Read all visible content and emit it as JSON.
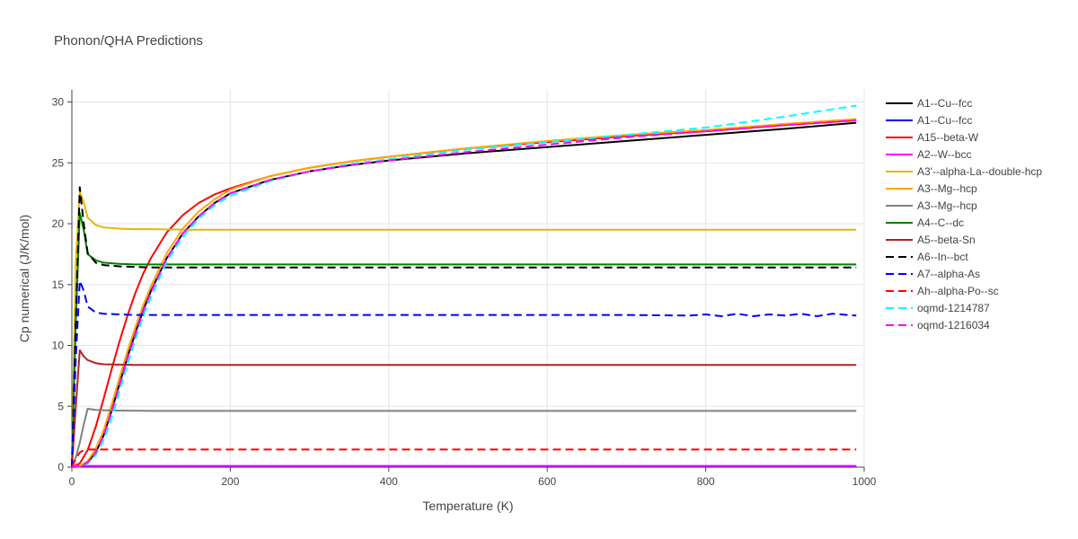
{
  "chart_data": {
    "type": "line",
    "title": "Phonon/QHA Predictions",
    "xlabel": "Temperature (K)",
    "ylabel": "Cp numerical (J/K/mol)",
    "xlim": [
      0,
      1000
    ],
    "ylim": [
      0,
      31
    ],
    "xticks": [
      0,
      200,
      400,
      600,
      800,
      1000
    ],
    "yticks": [
      0,
      5,
      10,
      15,
      20,
      25,
      30
    ],
    "grid": true,
    "legend_position": "right",
    "series": [
      {
        "name": "A1--Cu--fcc",
        "color": "#000000",
        "dash": "solid",
        "x": [
          0,
          10,
          20,
          30,
          40,
          50,
          60,
          70,
          80,
          90,
          100,
          120,
          140,
          160,
          180,
          200,
          250,
          300,
          350,
          400,
          500,
          600,
          700,
          800,
          900,
          990
        ],
        "y": [
          0,
          0.1,
          0.4,
          1.2,
          2.6,
          4.6,
          6.8,
          9.0,
          11.0,
          12.9,
          14.5,
          17.2,
          19.2,
          20.6,
          21.7,
          22.5,
          23.6,
          24.3,
          24.8,
          25.2,
          25.8,
          26.3,
          26.8,
          27.3,
          27.8,
          28.3
        ]
      },
      {
        "name": "A1--Cu--fcc",
        "color": "#0000ff",
        "dash": "solid",
        "x": [
          0,
          100,
          200,
          400,
          600,
          800,
          990
        ],
        "y": [
          0.05,
          0.05,
          0.05,
          0.05,
          0.05,
          0.05,
          0.05
        ]
      },
      {
        "name": "A15--beta-W",
        "color": "#ff0000",
        "dash": "solid",
        "x": [
          0,
          10,
          20,
          30,
          40,
          50,
          60,
          70,
          80,
          90,
          100,
          120,
          140,
          160,
          180,
          200,
          250,
          300,
          350,
          400,
          500,
          600,
          700,
          800,
          900,
          990
        ],
        "y": [
          0,
          0.3,
          1.4,
          3.3,
          5.6,
          8.0,
          10.3,
          12.4,
          14.3,
          15.9,
          17.2,
          19.3,
          20.7,
          21.7,
          22.4,
          22.9,
          23.9,
          24.6,
          25.1,
          25.5,
          26.2,
          26.7,
          27.2,
          27.6,
          28.1,
          28.5
        ]
      },
      {
        "name": "A2--W--bcc",
        "color": "#ff00ff",
        "dash": "solid",
        "x": [
          0,
          100,
          200,
          400,
          600,
          800,
          990
        ],
        "y": [
          0.1,
          0.1,
          0.1,
          0.1,
          0.1,
          0.1,
          0.1
        ]
      },
      {
        "name": "A3'--alpha-La--double-hcp",
        "color": "#e6b800",
        "dash": "solid",
        "x": [
          0,
          5,
          10,
          15,
          20,
          30,
          40,
          60,
          80,
          100,
          150,
          200,
          300,
          400,
          600,
          800,
          990
        ],
        "y": [
          0,
          17,
          22.6,
          21.8,
          20.5,
          19.9,
          19.7,
          19.6,
          19.55,
          19.55,
          19.5,
          19.5,
          19.5,
          19.5,
          19.5,
          19.5,
          19.5
        ]
      },
      {
        "name": "A3--Mg--hcp",
        "color": "#ffa500",
        "dash": "solid",
        "x": [
          0,
          10,
          20,
          30,
          40,
          50,
          60,
          70,
          80,
          90,
          100,
          120,
          140,
          160,
          180,
          200,
          250,
          300,
          350,
          400,
          500,
          600,
          700,
          800,
          900,
          990
        ],
        "y": [
          0,
          0.1,
          0.5,
          1.5,
          3.0,
          5.1,
          7.3,
          9.5,
          11.5,
          13.3,
          14.9,
          17.6,
          19.6,
          21.0,
          22.0,
          22.8,
          23.9,
          24.6,
          25.1,
          25.5,
          26.2,
          26.8,
          27.3,
          27.7,
          28.2,
          28.6
        ]
      },
      {
        "name": "A3--Mg--hcp",
        "color": "#808080",
        "dash": "solid",
        "x": [
          0,
          5,
          10,
          15,
          20,
          30,
          50,
          100,
          200,
          400,
          600,
          800,
          990
        ],
        "y": [
          0,
          0.8,
          2.0,
          3.5,
          4.8,
          4.7,
          4.65,
          4.62,
          4.62,
          4.62,
          4.62,
          4.62,
          4.62
        ]
      },
      {
        "name": "A4--C--dc",
        "color": "#008000",
        "dash": "solid",
        "x": [
          0,
          5,
          10,
          15,
          20,
          30,
          40,
          60,
          80,
          100,
          200,
          400,
          600,
          800,
          990
        ],
        "y": [
          0,
          12,
          20.9,
          19.5,
          17.5,
          17.0,
          16.8,
          16.7,
          16.65,
          16.65,
          16.65,
          16.65,
          16.65,
          16.65,
          16.65
        ]
      },
      {
        "name": "A5--beta-Sn",
        "color": "#b22222",
        "dash": "solid",
        "x": [
          0,
          5,
          10,
          15,
          20,
          30,
          40,
          60,
          80,
          100,
          200,
          400,
          600,
          800,
          990
        ],
        "y": [
          0,
          5,
          9.6,
          9.1,
          8.8,
          8.55,
          8.45,
          8.42,
          8.4,
          8.4,
          8.4,
          8.4,
          8.4,
          8.4,
          8.4
        ]
      },
      {
        "name": "A6--In--bct",
        "color": "#000000",
        "dash": "dash",
        "x": [
          0,
          5,
          10,
          15,
          20,
          30,
          40,
          60,
          80,
          100,
          200,
          400,
          600,
          800,
          990
        ],
        "y": [
          0,
          12,
          23.0,
          20.0,
          17.6,
          16.8,
          16.6,
          16.5,
          16.45,
          16.4,
          16.4,
          16.4,
          16.4,
          16.4,
          16.4
        ]
      },
      {
        "name": "A7--alpha-As",
        "color": "#0000ff",
        "dash": "dash",
        "x": [
          0,
          5,
          10,
          15,
          20,
          30,
          40,
          60,
          80,
          100,
          200,
          400,
          600,
          700,
          780,
          800,
          820,
          840,
          860,
          880,
          900,
          920,
          940,
          960,
          990
        ],
        "y": [
          0,
          9,
          15.3,
          14.5,
          13.2,
          12.7,
          12.6,
          12.55,
          12.5,
          12.5,
          12.5,
          12.5,
          12.5,
          12.5,
          12.45,
          12.55,
          12.4,
          12.6,
          12.4,
          12.55,
          12.45,
          12.6,
          12.4,
          12.6,
          12.45
        ]
      },
      {
        "name": "Ah--alpha-Po--sc",
        "color": "#ff0000",
        "dash": "dash",
        "x": [
          0,
          5,
          10,
          15,
          20,
          40,
          100,
          200,
          400,
          600,
          800,
          990
        ],
        "y": [
          0,
          0.7,
          1.2,
          1.4,
          1.45,
          1.45,
          1.45,
          1.45,
          1.45,
          1.45,
          1.45,
          1.45
        ]
      },
      {
        "name": "oqmd-1214787",
        "color": "#00ffff",
        "dash": "dash",
        "x": [
          0,
          10,
          20,
          30,
          40,
          50,
          60,
          70,
          80,
          90,
          100,
          120,
          140,
          160,
          180,
          200,
          250,
          300,
          350,
          400,
          500,
          600,
          700,
          800,
          900,
          990
        ],
        "y": [
          0,
          0.05,
          0.3,
          1.0,
          2.2,
          4.0,
          6.2,
          8.4,
          10.5,
          12.4,
          14.0,
          16.9,
          18.9,
          20.4,
          21.5,
          22.3,
          23.5,
          24.3,
          24.9,
          25.3,
          26.1,
          26.7,
          27.3,
          27.9,
          28.8,
          29.7
        ]
      },
      {
        "name": "oqmd-1216034",
        "color": "#ff00ff",
        "dash": "dash",
        "x": [
          0,
          10,
          20,
          30,
          40,
          50,
          60,
          70,
          80,
          90,
          100,
          120,
          140,
          160,
          180,
          200,
          250,
          300,
          350,
          400,
          500,
          600,
          700,
          800,
          900,
          990
        ],
        "y": [
          0,
          0.05,
          0.4,
          1.2,
          2.6,
          4.5,
          6.7,
          8.9,
          10.9,
          12.8,
          14.4,
          17.2,
          19.2,
          20.6,
          21.7,
          22.5,
          23.6,
          24.3,
          24.8,
          25.2,
          25.9,
          26.5,
          27.1,
          27.6,
          28.1,
          28.5
        ]
      }
    ]
  }
}
